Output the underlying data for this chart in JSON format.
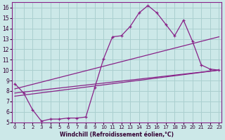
{
  "xlabel": "Windchill (Refroidissement éolien,°C)",
  "bg_color": "#cce8e8",
  "grid_color": "#aacfcf",
  "line_color": "#882288",
  "x_ticks": [
    0,
    1,
    2,
    3,
    4,
    5,
    6,
    7,
    8,
    9,
    10,
    11,
    12,
    13,
    14,
    15,
    16,
    17,
    18,
    19,
    20,
    21,
    22,
    23
  ],
  "y_ticks": [
    5,
    6,
    7,
    8,
    9,
    10,
    11,
    12,
    13,
    14,
    15,
    16
  ],
  "xlim": [
    -0.3,
    23.3
  ],
  "ylim": [
    5,
    16.5
  ],
  "curve1_x": [
    0,
    1,
    2,
    3,
    4,
    5,
    6,
    7,
    8,
    9,
    10,
    11,
    12,
    13,
    14,
    15,
    16,
    17,
    18,
    19,
    20,
    21,
    22,
    23
  ],
  "curve1_y": [
    8.7,
    7.8,
    6.2,
    5.1,
    5.3,
    5.3,
    5.4,
    5.4,
    5.5,
    8.3,
    11.1,
    13.2,
    13.3,
    14.2,
    15.5,
    16.2,
    15.5,
    14.4,
    13.3,
    14.8,
    12.8,
    10.5,
    10.1,
    10.0
  ],
  "line1_x": [
    0,
    23
  ],
  "line1_y": [
    7.5,
    10.0
  ],
  "line2_x": [
    0,
    23
  ],
  "line2_y": [
    7.8,
    10.0
  ],
  "line3_x": [
    0,
    23
  ],
  "line3_y": [
    8.2,
    13.2
  ]
}
